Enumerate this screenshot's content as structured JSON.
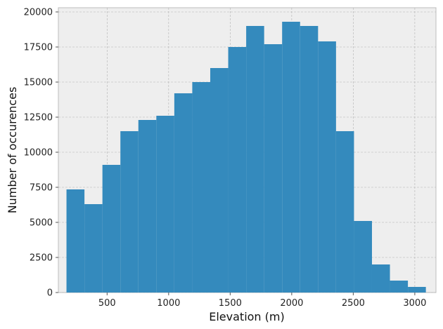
{
  "chart_data": {
    "type": "bar",
    "histogram": true,
    "title": "",
    "xlabel": "Elevation (m)",
    "ylabel": "Number of occurences",
    "xlim": [
      104,
      3172
    ],
    "ylim": [
      0,
      20300
    ],
    "grid": true,
    "xticks": [
      500,
      1000,
      1500,
      2000,
      2500,
      3000
    ],
    "yticks": [
      0,
      2500,
      5000,
      7500,
      10000,
      12500,
      15000,
      17500,
      20000
    ],
    "bin_edges": [
      170,
      316,
      462,
      608,
      754,
      900,
      1046,
      1192,
      1338,
      1484,
      1630,
      1776,
      1922,
      2068,
      2214,
      2360,
      2506,
      2652,
      2798,
      2944,
      3090
    ],
    "values": [
      7350,
      6300,
      9100,
      11500,
      12300,
      12600,
      14200,
      15000,
      16000,
      17500,
      19000,
      17700,
      19300,
      19000,
      17900,
      11500,
      5100,
      2000,
      850,
      400
    ],
    "colors": {
      "bar": "#348abd",
      "background": "#eeeeee",
      "grid": "#b2b2b2",
      "spine": "#bcbcbc"
    }
  }
}
